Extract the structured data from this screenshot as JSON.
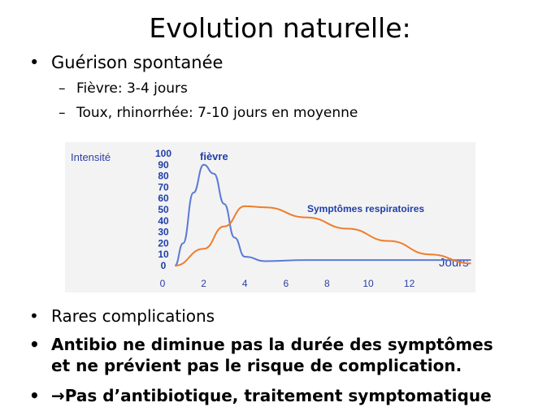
{
  "slide": {
    "title": "Evolution naturelle:",
    "bullet1": "Guérison spontanée",
    "sub1": "Fièvre: 3-4 jours",
    "sub2": "Toux, rhinorrhée: 7-10 jours en moyenne",
    "bullet2": "Rares complications",
    "bullet3_line1": "Antibio ne diminue pas la durée des symptômes",
    "bullet3_line2": "et ne prévient pas le risque de complication.",
    "bullet4_arrow": "→",
    "bullet4": "Pas d’antibiotique, traitement symptomatique",
    "bullet_glyph": "•",
    "dash_glyph": "–"
  },
  "chart_data": {
    "type": "line",
    "ylabel": "Intensité",
    "xlabel": "Jours",
    "xlim": [
      0,
      15
    ],
    "ylim": [
      0,
      100
    ],
    "x_ticks": [
      0,
      2,
      4,
      6,
      8,
      10,
      12
    ],
    "y_ticks": [
      0,
      10,
      20,
      30,
      40,
      50,
      60,
      70,
      80,
      90,
      100
    ],
    "series": [
      {
        "name": "fièvre",
        "color": "#5b7bd5",
        "points": [
          [
            0.6,
            0
          ],
          [
            1,
            20
          ],
          [
            1.5,
            65
          ],
          [
            2,
            90
          ],
          [
            2.5,
            82
          ],
          [
            3,
            55
          ],
          [
            3.5,
            25
          ],
          [
            4,
            8
          ],
          [
            5,
            4
          ],
          [
            7,
            5
          ],
          [
            9,
            5
          ],
          [
            11,
            5
          ],
          [
            13,
            5
          ],
          [
            15,
            5
          ]
        ]
      },
      {
        "name": "Symptômes respiratoires",
        "color": "#ef7d2c",
        "points": [
          [
            0.6,
            0
          ],
          [
            2,
            15
          ],
          [
            3,
            35
          ],
          [
            4,
            53
          ],
          [
            5,
            52
          ],
          [
            7,
            43
          ],
          [
            9,
            33
          ],
          [
            11,
            22
          ],
          [
            13,
            10
          ],
          [
            15,
            2
          ]
        ]
      }
    ],
    "label_color": "#1f3fa8",
    "grid": false,
    "legend": "inline labels"
  }
}
